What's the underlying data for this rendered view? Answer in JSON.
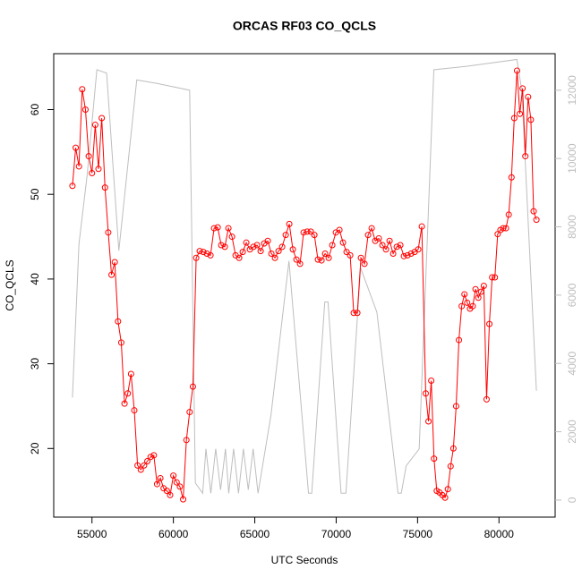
{
  "chart_data": {
    "type": "line",
    "title": "ORCAS RF03 CO_QCLS",
    "xlabel": "UTC Seconds",
    "ylabel": "CO_QCLS",
    "xlim": [
      52650,
      83450
    ],
    "ylim": [
      11.9,
      66.6
    ],
    "y2lim": [
      -500,
      13070
    ],
    "xticks": [
      55000,
      60000,
      65000,
      70000,
      75000,
      80000
    ],
    "yticks": [
      20,
      30,
      40,
      50,
      60
    ],
    "y2ticks": [
      0,
      2000,
      4000,
      6000,
      8000,
      10000,
      12000
    ],
    "series": [
      {
        "color": "#ff0000",
        "marker": "circle",
        "x": [
          53800,
          54000,
          54200,
          54400,
          54600,
          54800,
          55000,
          55200,
          55400,
          55600,
          55800,
          56000,
          56200,
          56400,
          56600,
          56800,
          57000,
          57200,
          57400,
          57600,
          57800,
          58000,
          58200,
          58400,
          58600,
          58800,
          59000,
          59200,
          59400,
          59600,
          59800,
          60000,
          60200,
          60400,
          60600,
          60800,
          61000,
          61200,
          61400,
          61620,
          61840,
          62060,
          62280,
          62500,
          62720,
          62940,
          63160,
          63380,
          63600,
          63820,
          64040,
          64260,
          64480,
          64700,
          64920,
          65140,
          65360,
          65580,
          65800,
          66020,
          66240,
          66460,
          66680,
          66900,
          67120,
          67340,
          67560,
          67780,
          68000,
          68220,
          68440,
          68660,
          68880,
          69100,
          69320,
          69540,
          69760,
          69980,
          70200,
          70420,
          70640,
          70860,
          71080,
          71300,
          71520,
          71740,
          71960,
          72180,
          72400,
          72620,
          72840,
          73060,
          73280,
          73500,
          73720,
          73940,
          74160,
          74380,
          74600,
          74820,
          75040,
          75260,
          75500,
          75670,
          75840,
          76010,
          76180,
          76350,
          76520,
          76690,
          76860,
          77030,
          77200,
          77370,
          77540,
          77710,
          77880,
          78050,
          78220,
          78390,
          78560,
          78730,
          78900,
          79070,
          79240,
          79410,
          79580,
          79750,
          79920,
          80090,
          80260,
          80430,
          80600,
          80770,
          80940,
          81110,
          81280,
          81450,
          81620,
          81790,
          81960,
          82130,
          82300
        ],
        "values": [
          51,
          55.5,
          53.3,
          62.4,
          60,
          54.5,
          52.5,
          58.2,
          53,
          59,
          50.8,
          45.5,
          40.5,
          42,
          35,
          32.5,
          25.3,
          26.5,
          28.8,
          24.5,
          18,
          17.5,
          18,
          18.5,
          19,
          19.2,
          15.8,
          16.5,
          15.3,
          15,
          14.5,
          16.8,
          16,
          15.5,
          14,
          21,
          24.3,
          27.3,
          42.5,
          43.3,
          43.2,
          43,
          42.8,
          46,
          46.1,
          44,
          43.8,
          46,
          45,
          42.8,
          42.5,
          43.2,
          44.3,
          43.5,
          43.8,
          44,
          43.3,
          44.2,
          44.5,
          43,
          42.5,
          43.3,
          43.8,
          45.2,
          46.5,
          43.5,
          42.3,
          41.8,
          45.5,
          45.6,
          45.6,
          45.2,
          42.3,
          42.2,
          43,
          42.5,
          44,
          45.5,
          45.8,
          44.3,
          43.2,
          42.8,
          36,
          36,
          42.5,
          41.8,
          45.2,
          46,
          44.5,
          44.8,
          44,
          43.5,
          44.5,
          43,
          43.8,
          44,
          42.7,
          42.8,
          43,
          43.2,
          43.5,
          46.2,
          26.5,
          23.2,
          28,
          18.8,
          15,
          14.8,
          14.5,
          14.2,
          15.2,
          17.9,
          20,
          25,
          32.8,
          36.8,
          38.2,
          37.2,
          36.5,
          36.8,
          38.8,
          37.8,
          38.5,
          39.2,
          25.8,
          34.7,
          40.2,
          40.2,
          45.3,
          45.8,
          46,
          46,
          47.6,
          52,
          59,
          64.6,
          59.5,
          62.5,
          54.5,
          61.5,
          58.8,
          48,
          47
        ]
      },
      {
        "color": "#bebebe",
        "axis": "y2",
        "x": [
          53800,
          54200,
          54700,
          55300,
          55900,
          56650,
          57750,
          59000,
          61000,
          61350,
          61800,
          62000,
          62300,
          62600,
          62900,
          63200,
          63400,
          63700,
          64000,
          64300,
          64600,
          64900,
          65200,
          66000,
          67100,
          68300,
          68500,
          69300,
          69500,
          70300,
          70600,
          71500,
          72500,
          73800,
          74000,
          74300,
          75100,
          76000,
          78000,
          81100,
          81400,
          82300
        ],
        "values": [
          3000,
          7500,
          9500,
          12600,
          12500,
          7300,
          12300,
          12200,
          12000,
          500,
          200,
          1500,
          200,
          1500,
          300,
          1500,
          200,
          1500,
          200,
          1500,
          300,
          1500,
          200,
          2500,
          7000,
          200,
          200,
          5800,
          5800,
          200,
          200,
          6800,
          5500,
          200,
          200,
          1000,
          1500,
          12600,
          12700,
          12900,
          12000,
          3200
        ]
      }
    ]
  }
}
